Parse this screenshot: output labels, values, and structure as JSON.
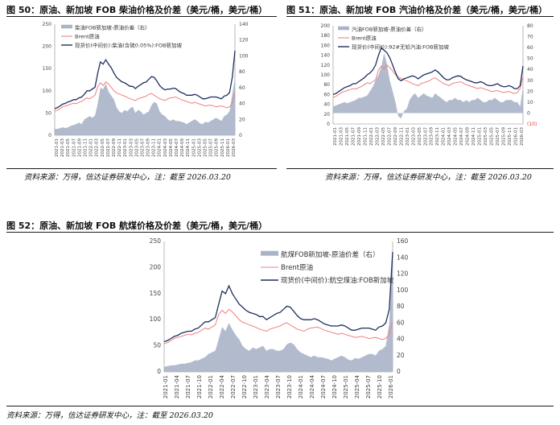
{
  "figures": [
    {
      "title": "图 50：原油、新加坡 FOB 柴油价格及价差（美元/桶，美元/桶）",
      "source": "资料来源：万得，信达证券研发中心，注：截至 2026.03.20",
      "chart_data": {
        "type": "line",
        "x_ticks": [
          "2021-01",
          "2021-03",
          "2021-05",
          "2021-07",
          "2021-09",
          "2021-11",
          "2022-01",
          "2022-03",
          "2022-05",
          "2022-07",
          "2022-09",
          "2022-11",
          "2023-01",
          "2023-03",
          "2023-05",
          "2023-07",
          "2023-09",
          "2023-11",
          "2024-01",
          "2024-03",
          "2024-05",
          "2024-07",
          "2024-09",
          "2024-11",
          "2025-01",
          "2025-03",
          "2025-05",
          "2025-07",
          "2025-09",
          "2025-11",
          "2026-01",
          "2026-03"
        ],
        "left_axis": {
          "ylim": [
            0,
            250
          ],
          "ticks": [
            "0",
            "50",
            "100",
            "150",
            "200",
            "250"
          ]
        },
        "right_axis": {
          "ylim": [
            0,
            140
          ],
          "ticks": [
            "0",
            "20",
            "40",
            "60",
            "80",
            "100",
            "120",
            "140"
          ]
        },
        "series": [
          {
            "name": "柴油FOB新加坡-原油价差（右）",
            "axis": "right",
            "kind": "area",
            "color": "#aab4c8",
            "values": [
              8,
              8,
              9,
              10,
              9,
              10,
              12,
              13,
              14,
              16,
              14,
              20,
              22,
              24,
              22,
              25,
              40,
              60,
              58,
              65,
              55,
              50,
              45,
              35,
              30,
              28,
              32,
              30,
              34,
              36,
              28,
              32,
              30,
              26,
              28,
              30,
              38,
              42,
              40,
              30,
              26,
              24,
              20,
              18,
              20,
              18,
              18,
              17,
              16,
              14,
              16,
              18,
              20,
              18,
              15,
              14,
              17,
              16,
              18,
              20,
              22,
              20,
              18,
              24,
              26,
              30,
              52,
              72
            ]
          },
          {
            "name": "Brent原油",
            "axis": "left",
            "kind": "line",
            "color": "#f08080",
            "values": [
              54,
              56,
              60,
              64,
              66,
              68,
              70,
              72,
              71,
              74,
              76,
              80,
              84,
              82,
              86,
              90,
              110,
              118,
              112,
              120,
              115,
              108,
              100,
              95,
              93,
              90,
              88,
              85,
              82,
              80,
              78,
              82,
              84,
              86,
              88,
              92,
              94,
              90,
              86,
              82,
              80,
              78,
              82,
              84,
              85,
              86,
              83,
              80,
              78,
              76,
              74,
              72,
              74,
              72,
              70,
              68,
              66,
              67,
              68,
              66,
              64,
              65,
              66,
              64,
              62,
              64,
              72,
              96
            ]
          },
          {
            "name": "现货价(中间价):柴油(含硫0.05%):FOB新加坡",
            "axis": "left",
            "kind": "line",
            "color": "#1f2f5c",
            "values": [
              60,
              62,
              66,
              70,
              72,
              75,
              77,
              80,
              80,
              84,
              86,
              92,
              100,
              100,
              104,
              108,
              140,
              165,
              160,
              170,
              160,
              152,
              140,
              130,
              125,
              120,
              118,
              114,
              110,
              110,
              105,
              110,
              114,
              118,
              120,
              126,
              132,
              130,
              122,
              112,
              106,
              102,
              104,
              104,
              106,
              105,
              100,
              96,
              94,
              90,
              90,
              90,
              92,
              90,
              86,
              82,
              82,
              84,
              86,
              86,
              86,
              84,
              82,
              88,
              90,
              96,
              130,
              190
            ]
          }
        ]
      }
    },
    {
      "title": "图 51：原油、新加坡 FOB 汽油价格及价差（美元/桶，美元/桶）",
      "source": "资料来源：万得，信达证券研发中心，注：截至 2026.03.20",
      "chart_data": {
        "type": "line",
        "x_ticks": [
          "2021-01",
          "2021-03",
          "2021-05",
          "2021-07",
          "2021-09",
          "2021-11",
          "2022-01",
          "2022-03",
          "2022-05",
          "2022-07",
          "2022-09",
          "2022-11",
          "2023-01",
          "2023-03",
          "2023-05",
          "2023-07",
          "2023-09",
          "2023-11",
          "2024-01",
          "2024-03",
          "2024-05",
          "2024-07",
          "2024-09",
          "2024-11",
          "2025-01",
          "2025-03",
          "2025-05",
          "2025-07",
          "2025-09",
          "2025-11",
          "2026-01",
          "2026-03"
        ],
        "left_axis": {
          "ylim": [
            0,
            200
          ],
          "ticks": [
            "0",
            "20",
            "40",
            "60",
            "80",
            "100",
            "120",
            "140",
            "160",
            "180",
            "200"
          ]
        },
        "right_axis": {
          "ylim": [
            -10,
            80
          ],
          "ticks": [
            "(10)",
            "0",
            "10",
            "20",
            "30",
            "40",
            "50",
            "60",
            "70",
            "80"
          ]
        },
        "series": [
          {
            "name": "汽油FOB新加坡-原油价差（右）",
            "axis": "right",
            "kind": "area",
            "color": "#aab4c8",
            "values": [
              6,
              7,
              8,
              9,
              10,
              9,
              10,
              11,
              12,
              14,
              14,
              15,
              16,
              20,
              24,
              30,
              35,
              42,
              55,
              45,
              30,
              20,
              10,
              -3,
              -5,
              2,
              4,
              12,
              16,
              18,
              14,
              16,
              18,
              16,
              15,
              14,
              18,
              16,
              14,
              12,
              10,
              12,
              12,
              14,
              12,
              12,
              10,
              12,
              10,
              12,
              12,
              14,
              12,
              10,
              10,
              12,
              12,
              14,
              12,
              10,
              10,
              12,
              12,
              12,
              10,
              10,
              6,
              24
            ]
          },
          {
            "name": "Brent原油",
            "axis": "left",
            "kind": "line",
            "color": "#f08080",
            "values": [
              54,
              56,
              60,
              64,
              66,
              68,
              70,
              72,
              71,
              74,
              76,
              80,
              84,
              82,
              86,
              90,
              110,
              118,
              112,
              120,
              115,
              108,
              100,
              95,
              93,
              90,
              88,
              85,
              82,
              80,
              78,
              82,
              84,
              86,
              88,
              92,
              94,
              90,
              86,
              82,
              80,
              78,
              82,
              84,
              85,
              86,
              83,
              80,
              78,
              76,
              74,
              72,
              74,
              72,
              70,
              68,
              66,
              67,
              68,
              66,
              64,
              65,
              66,
              64,
              62,
              64,
              72,
              96
            ]
          },
          {
            "name": "现货价(中间价):92#无铅汽油:FOB新加坡",
            "axis": "left",
            "kind": "line",
            "color": "#1f2f5c",
            "values": [
              60,
              62,
              66,
              70,
              74,
              76,
              78,
              82,
              82,
              86,
              90,
              94,
              100,
              104,
              110,
              120,
              140,
              155,
              150,
              145,
              135,
              120,
              105,
              92,
              88,
              92,
              94,
              96,
              98,
              96,
              92,
              96,
              100,
              102,
              104,
              106,
              110,
              106,
              100,
              94,
              90,
              90,
              94,
              96,
              98,
              97,
              93,
              90,
              88,
              86,
              84,
              84,
              86,
              84,
              80,
              78,
              78,
              80,
              82,
              78,
              76,
              76,
              78,
              76,
              72,
              72,
              78,
              118
            ]
          }
        ]
      }
    },
    {
      "title": "图 52：原油、新加坡 FOB 航煤价格及价差（美元/桶，美元/桶）",
      "source": "资料来源：万得，信达证券研发中心，注：截至 2026.03.20",
      "chart_data": {
        "type": "line",
        "x_ticks": [
          "2021-01",
          "2021-04",
          "2021-07",
          "2021-10",
          "2022-01",
          "2022-04",
          "2022-07",
          "2022-10",
          "2023-01",
          "2023-04",
          "2023-07",
          "2023-10",
          "2024-01",
          "2024-04",
          "2024-07",
          "2024-10",
          "2025-01",
          "2025-04",
          "2025-07",
          "2025-10",
          "2026-01"
        ],
        "left_axis": {
          "ylim": [
            0,
            250
          ],
          "ticks": [
            "0",
            "50",
            "100",
            "150",
            "200",
            "250"
          ]
        },
        "right_axis": {
          "ylim": [
            0,
            160
          ],
          "ticks": [
            "0",
            "20",
            "40",
            "60",
            "80",
            "100",
            "120",
            "140",
            "160"
          ]
        },
        "series": [
          {
            "name": "航煤FOB新加坡-原油价差（右）",
            "axis": "right",
            "kind": "area",
            "color": "#aab4c8",
            "values": [
              6,
              7,
              8,
              8,
              9,
              10,
              10,
              11,
              12,
              14,
              14,
              16,
              18,
              22,
              24,
              26,
              40,
              55,
              50,
              60,
              52,
              45,
              40,
              32,
              28,
              26,
              30,
              28,
              30,
              32,
              26,
              28,
              28,
              26,
              26,
              28,
              34,
              36,
              34,
              28,
              24,
              22,
              20,
              18,
              20,
              18,
              18,
              17,
              16,
              14,
              16,
              18,
              20,
              18,
              15,
              14,
              17,
              16,
              18,
              20,
              22,
              22,
              20,
              26,
              28,
              32,
              60,
              140
            ]
          },
          {
            "name": "Brent原油",
            "axis": "left",
            "kind": "line",
            "color": "#f08080",
            "values": [
              54,
              56,
              60,
              64,
              66,
              68,
              70,
              72,
              71,
              74,
              76,
              80,
              84,
              82,
              86,
              90,
              110,
              118,
              112,
              120,
              115,
              108,
              100,
              95,
              93,
              90,
              88,
              85,
              82,
              80,
              78,
              82,
              84,
              86,
              88,
              92,
              94,
              90,
              86,
              82,
              80,
              78,
              82,
              84,
              85,
              86,
              83,
              80,
              78,
              76,
              74,
              72,
              74,
              72,
              70,
              68,
              66,
              67,
              68,
              66,
              64,
              65,
              66,
              64,
              62,
              64,
              72,
              96
            ]
          },
          {
            "name": "现货价(中间价):航空煤油:FOB新加坡",
            "axis": "left",
            "kind": "line",
            "color": "#1f2f5c",
            "values": [
              58,
              60,
              64,
              68,
              70,
              74,
              76,
              78,
              78,
              82,
              84,
              90,
              96,
              96,
              100,
              104,
              130,
              155,
              150,
              165,
              150,
              140,
              130,
              124,
              118,
              114,
              112,
              110,
              106,
              106,
              100,
              104,
              108,
              112,
              114,
              120,
              126,
              124,
              116,
              108,
              102,
              100,
              100,
              100,
              102,
              100,
              96,
              92,
              90,
              88,
              88,
              88,
              90,
              88,
              84,
              80,
              80,
              82,
              84,
              84,
              84,
              82,
              80,
              86,
              88,
              94,
              120,
              230
            ]
          }
        ]
      }
    }
  ]
}
